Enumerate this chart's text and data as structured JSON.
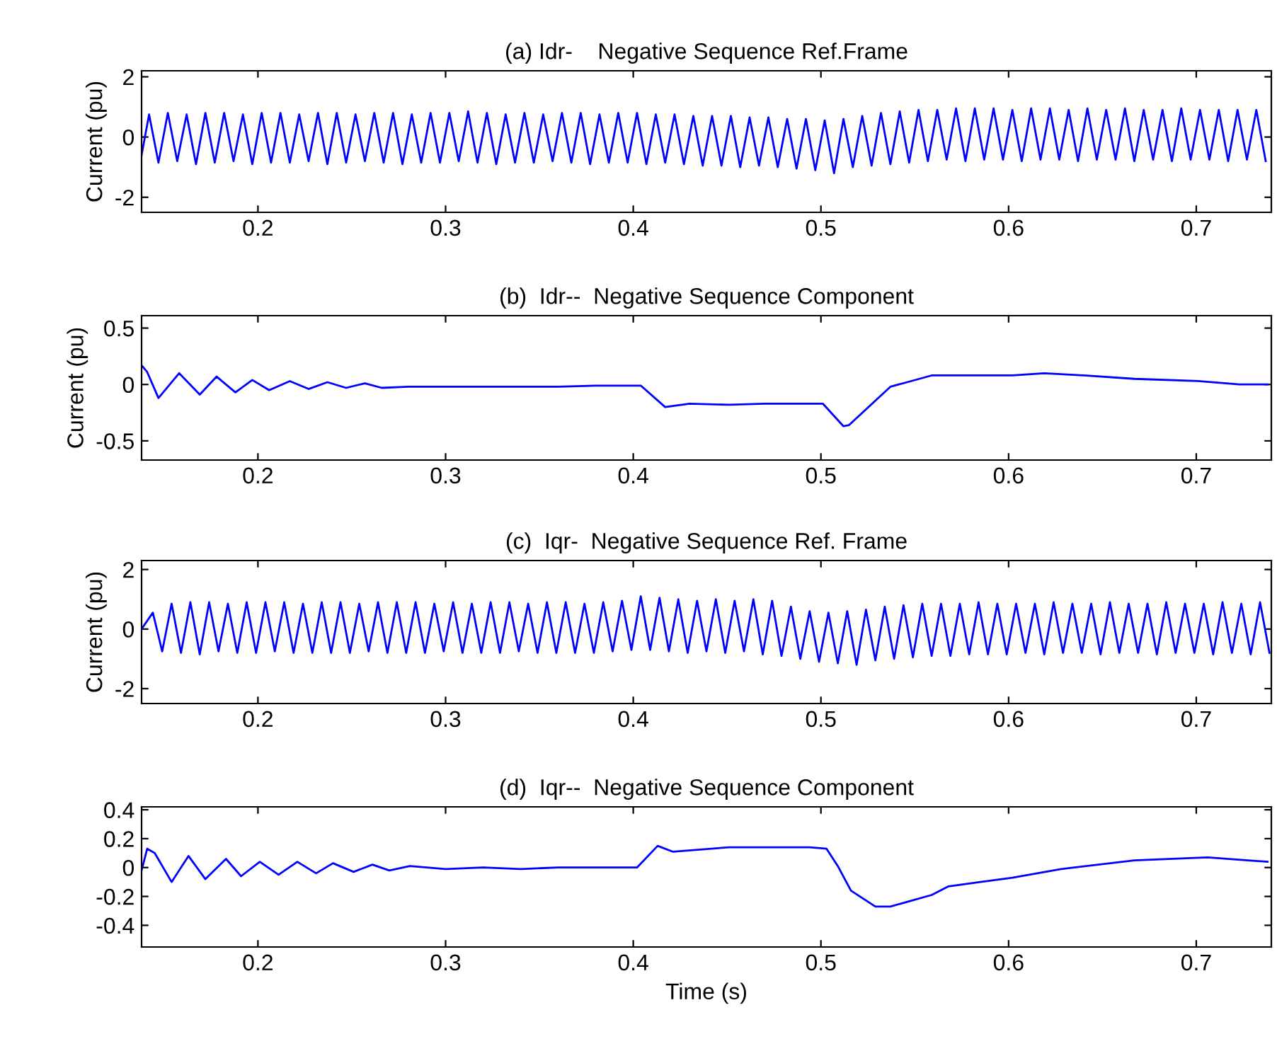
{
  "chart_data": [
    {
      "type": "line",
      "title": "(a) Idr-    Negative Sequence Ref.Frame",
      "ylabel": "Current (pu)",
      "xlim": [
        0.138,
        0.74
      ],
      "ylim": [
        -2.5,
        2.2
      ],
      "xticks": [
        0.2,
        0.3,
        0.4,
        0.5,
        0.6,
        0.7
      ],
      "yticks": [
        -2,
        0,
        2
      ],
      "series": [
        {
          "color": "#0000ff",
          "x": [
            0.138,
            0.142,
            0.147,
            0.152,
            0.157,
            0.162,
            0.167,
            0.172,
            0.177,
            0.182,
            0.187,
            0.192,
            0.197,
            0.202,
            0.207,
            0.212,
            0.217,
            0.222,
            0.227,
            0.232,
            0.237,
            0.242,
            0.247,
            0.252,
            0.257,
            0.262,
            0.267,
            0.272,
            0.277,
            0.282,
            0.287,
            0.292,
            0.297,
            0.302,
            0.307,
            0.312,
            0.317,
            0.322,
            0.327,
            0.332,
            0.337,
            0.342,
            0.347,
            0.352,
            0.357,
            0.362,
            0.367,
            0.372,
            0.377,
            0.382,
            0.387,
            0.392,
            0.397,
            0.402,
            0.407,
            0.412,
            0.417,
            0.422,
            0.427,
            0.432,
            0.437,
            0.442,
            0.447,
            0.452,
            0.457,
            0.462,
            0.467,
            0.472,
            0.477,
            0.482,
            0.487,
            0.492,
            0.497,
            0.502,
            0.507,
            0.512,
            0.517,
            0.522,
            0.527,
            0.532,
            0.537,
            0.542,
            0.547,
            0.552,
            0.557,
            0.562,
            0.567,
            0.572,
            0.577,
            0.582,
            0.587,
            0.592,
            0.597,
            0.602,
            0.607,
            0.612,
            0.617,
            0.622,
            0.627,
            0.632,
            0.637,
            0.642,
            0.647,
            0.652,
            0.657,
            0.662,
            0.667,
            0.672,
            0.677,
            0.682,
            0.687,
            0.692,
            0.697,
            0.702,
            0.707,
            0.712,
            0.717,
            0.722,
            0.727,
            0.732,
            0.737
          ],
          "values": [
            -0.6,
            0.75,
            -0.85,
            0.8,
            -0.8,
            0.75,
            -0.9,
            0.8,
            -0.85,
            0.8,
            -0.8,
            0.75,
            -0.9,
            0.8,
            -0.85,
            0.8,
            -0.85,
            0.75,
            -0.8,
            0.8,
            -0.9,
            0.8,
            -0.85,
            0.75,
            -0.8,
            0.8,
            -0.85,
            0.8,
            -0.9,
            0.75,
            -0.85,
            0.8,
            -0.85,
            0.8,
            -0.8,
            0.85,
            -0.85,
            0.8,
            -0.9,
            0.75,
            -0.85,
            0.8,
            -0.85,
            0.75,
            -0.8,
            0.8,
            -0.85,
            0.8,
            -0.9,
            0.75,
            -0.85,
            0.8,
            -0.85,
            0.8,
            -0.9,
            0.75,
            -0.85,
            0.75,
            -0.9,
            0.7,
            -0.95,
            0.7,
            -0.95,
            0.7,
            -1.0,
            0.65,
            -0.95,
            0.65,
            -1.0,
            0.6,
            -1.05,
            0.6,
            -1.1,
            0.55,
            -1.2,
            0.6,
            -1.0,
            0.7,
            -0.95,
            0.8,
            -0.9,
            0.85,
            -0.85,
            0.9,
            -0.8,
            0.9,
            -0.75,
            0.95,
            -0.8,
            0.95,
            -0.75,
            0.95,
            -0.75,
            0.9,
            -0.8,
            0.95,
            -0.75,
            0.95,
            -0.75,
            0.9,
            -0.8,
            0.95,
            -0.75,
            0.9,
            -0.75,
            0.95,
            -0.8,
            0.9,
            -0.75,
            0.9,
            -0.8,
            0.95,
            -0.75,
            0.9,
            -0.75,
            0.9,
            -0.8,
            0.9,
            -0.75,
            0.9,
            -0.8
          ]
        }
      ]
    },
    {
      "type": "line",
      "title": "(b)  Idr--  Negative Sequence Component",
      "ylabel": "Current (pu)",
      "xlim": [
        0.138,
        0.74
      ],
      "ylim": [
        -0.67,
        0.61
      ],
      "xticks": [
        0.2,
        0.3,
        0.4,
        0.5,
        0.6,
        0.7
      ],
      "yticks": [
        -0.5,
        0,
        0.5
      ],
      "series": [
        {
          "color": "#0000ff",
          "x": [
            0.138,
            0.141,
            0.147,
            0.158,
            0.169,
            0.178,
            0.188,
            0.197,
            0.206,
            0.217,
            0.227,
            0.237,
            0.247,
            0.257,
            0.266,
            0.28,
            0.3,
            0.32,
            0.34,
            0.36,
            0.38,
            0.404,
            0.417,
            0.43,
            0.451,
            0.47,
            0.49,
            0.501,
            0.512,
            0.515,
            0.537,
            0.559,
            0.58,
            0.602,
            0.619,
            0.64,
            0.667,
            0.701,
            0.723,
            0.738
          ],
          "values": [
            0.17,
            0.11,
            -0.12,
            0.1,
            -0.09,
            0.07,
            -0.07,
            0.04,
            -0.05,
            0.03,
            -0.04,
            0.02,
            -0.03,
            0.01,
            -0.03,
            -0.02,
            -0.02,
            -0.02,
            -0.02,
            -0.02,
            -0.01,
            -0.01,
            -0.2,
            -0.17,
            -0.18,
            -0.17,
            -0.17,
            -0.17,
            -0.37,
            -0.36,
            -0.02,
            0.08,
            0.08,
            0.08,
            0.1,
            0.08,
            0.05,
            0.03,
            0.0,
            0.0
          ]
        }
      ]
    },
    {
      "type": "line",
      "title": "(c)  Iqr-  Negative Sequence Ref. Frame",
      "ylabel": "Current (pu)",
      "xlim": [
        0.138,
        0.74
      ],
      "ylim": [
        -2.5,
        2.3
      ],
      "xticks": [
        0.2,
        0.3,
        0.4,
        0.5,
        0.6,
        0.7
      ],
      "yticks": [
        -2,
        0,
        2
      ],
      "series": [
        {
          "color": "#0000ff",
          "x": [
            0.138,
            0.144,
            0.149,
            0.154,
            0.159,
            0.164,
            0.169,
            0.174,
            0.179,
            0.184,
            0.189,
            0.194,
            0.199,
            0.204,
            0.209,
            0.214,
            0.219,
            0.224,
            0.229,
            0.234,
            0.239,
            0.244,
            0.249,
            0.254,
            0.259,
            0.264,
            0.269,
            0.274,
            0.279,
            0.284,
            0.289,
            0.294,
            0.299,
            0.304,
            0.309,
            0.314,
            0.319,
            0.324,
            0.329,
            0.334,
            0.339,
            0.344,
            0.349,
            0.354,
            0.359,
            0.364,
            0.369,
            0.374,
            0.379,
            0.384,
            0.389,
            0.394,
            0.399,
            0.404,
            0.409,
            0.414,
            0.419,
            0.424,
            0.429,
            0.434,
            0.439,
            0.444,
            0.449,
            0.454,
            0.459,
            0.464,
            0.469,
            0.474,
            0.479,
            0.484,
            0.489,
            0.494,
            0.499,
            0.504,
            0.509,
            0.514,
            0.519,
            0.524,
            0.529,
            0.534,
            0.539,
            0.544,
            0.549,
            0.554,
            0.559,
            0.564,
            0.569,
            0.574,
            0.579,
            0.584,
            0.589,
            0.594,
            0.599,
            0.604,
            0.609,
            0.614,
            0.619,
            0.624,
            0.629,
            0.634,
            0.639,
            0.644,
            0.649,
            0.654,
            0.659,
            0.664,
            0.669,
            0.674,
            0.679,
            0.684,
            0.689,
            0.694,
            0.699,
            0.704,
            0.709,
            0.714,
            0.719,
            0.724,
            0.729,
            0.734,
            0.739
          ],
          "values": [
            0.0,
            0.55,
            -0.75,
            0.85,
            -0.8,
            0.9,
            -0.85,
            0.9,
            -0.75,
            0.85,
            -0.8,
            0.9,
            -0.8,
            0.9,
            -0.75,
            0.9,
            -0.8,
            0.85,
            -0.8,
            0.9,
            -0.8,
            0.9,
            -0.8,
            0.85,
            -0.75,
            0.9,
            -0.8,
            0.9,
            -0.8,
            0.9,
            -0.8,
            0.85,
            -0.75,
            0.9,
            -0.8,
            0.85,
            -0.8,
            0.9,
            -0.8,
            0.9,
            -0.75,
            0.85,
            -0.8,
            0.9,
            -0.8,
            0.9,
            -0.8,
            0.85,
            -0.8,
            0.9,
            -0.75,
            0.95,
            -0.7,
            1.1,
            -0.7,
            1.05,
            -0.75,
            1.0,
            -0.8,
            0.95,
            -0.75,
            1.0,
            -0.8,
            0.95,
            -0.75,
            1.0,
            -0.85,
            0.95,
            -0.9,
            0.75,
            -1.0,
            0.6,
            -1.1,
            0.55,
            -1.15,
            0.6,
            -1.2,
            0.65,
            -1.05,
            0.75,
            -1.0,
            0.8,
            -0.95,
            0.85,
            -0.9,
            0.85,
            -0.9,
            0.85,
            -0.85,
            0.9,
            -0.85,
            0.85,
            -0.85,
            0.85,
            -0.8,
            0.85,
            -0.85,
            0.9,
            -0.8,
            0.85,
            -0.8,
            0.85,
            -0.85,
            0.9,
            -0.8,
            0.85,
            -0.8,
            0.85,
            -0.85,
            0.9,
            -0.8,
            0.85,
            -0.8,
            0.85,
            -0.85,
            0.9,
            -0.8,
            0.85,
            -0.85,
            0.9,
            -0.8
          ]
        }
      ]
    },
    {
      "type": "line",
      "title": "(d)  Iqr--  Negative Sequence Component",
      "xlabel": "Time (s)",
      "xlim": [
        0.138,
        0.74
      ],
      "ylim": [
        -0.55,
        0.42
      ],
      "xticks": [
        0.2,
        0.3,
        0.4,
        0.5,
        0.6,
        0.7
      ],
      "yticks": [
        -0.4,
        -0.2,
        0,
        0.2,
        0.4
      ],
      "series": [
        {
          "color": "#0000ff",
          "x": [
            0.138,
            0.141,
            0.145,
            0.154,
            0.163,
            0.172,
            0.183,
            0.191,
            0.201,
            0.211,
            0.221,
            0.231,
            0.24,
            0.251,
            0.261,
            0.27,
            0.281,
            0.3,
            0.32,
            0.34,
            0.36,
            0.38,
            0.402,
            0.413,
            0.421,
            0.451,
            0.475,
            0.494,
            0.503,
            0.509,
            0.516,
            0.529,
            0.537,
            0.559,
            0.568,
            0.585,
            0.602,
            0.628,
            0.667,
            0.706,
            0.738
          ],
          "values": [
            -0.02,
            0.13,
            0.1,
            -0.1,
            0.08,
            -0.08,
            0.06,
            -0.06,
            0.04,
            -0.05,
            0.04,
            -0.04,
            0.03,
            -0.03,
            0.02,
            -0.02,
            0.01,
            -0.01,
            0.0,
            -0.01,
            0.0,
            0.0,
            0.0,
            0.15,
            0.11,
            0.14,
            0.14,
            0.14,
            0.13,
            0.01,
            -0.16,
            -0.27,
            -0.27,
            -0.19,
            -0.13,
            -0.1,
            -0.07,
            -0.01,
            0.05,
            0.07,
            0.04
          ]
        }
      ]
    }
  ]
}
